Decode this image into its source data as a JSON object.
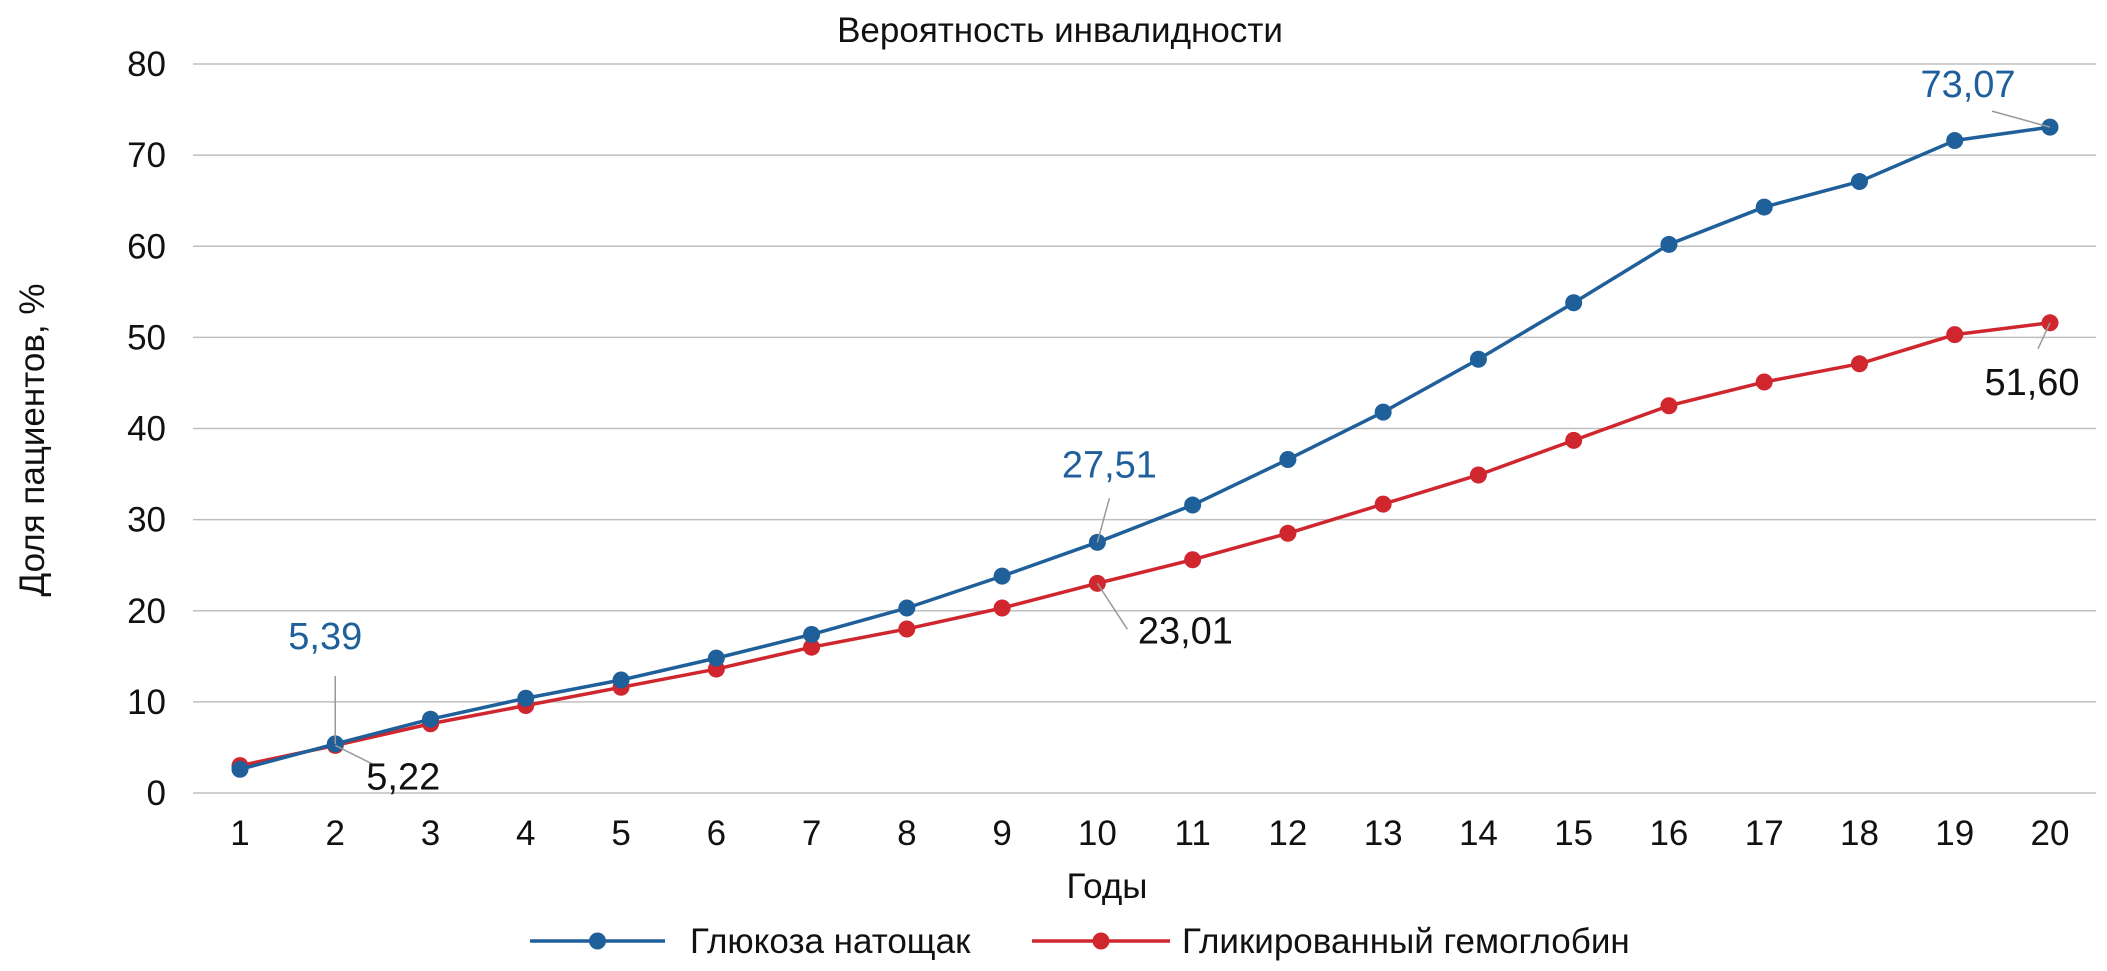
{
  "chart_data": {
    "type": "line",
    "title": "Вероятность инвалидности",
    "xlabel": "Годы",
    "ylabel": "Доля пациентов, %",
    "categories": [
      "1",
      "2",
      "3",
      "4",
      "5",
      "6",
      "7",
      "8",
      "9",
      "10",
      "11",
      "12",
      "13",
      "14",
      "15",
      "16",
      "17",
      "18",
      "19",
      "20"
    ],
    "ylim": [
      0,
      80
    ],
    "yticks": [
      "0",
      "10",
      "20",
      "30",
      "40",
      "50",
      "60",
      "70",
      "80"
    ],
    "grid": true,
    "legend_position": "bottom",
    "series": [
      {
        "name": "Глюкоза натощак",
        "color": "#1f5f9a",
        "values": [
          2.6,
          5.39,
          8.1,
          10.4,
          12.4,
          14.8,
          17.4,
          20.3,
          23.8,
          27.51,
          31.6,
          36.6,
          41.8,
          47.6,
          53.8,
          60.2,
          64.3,
          67.1,
          71.6,
          73.07
        ]
      },
      {
        "name": "Гликированный гемоглобин",
        "color": "#d0262e",
        "values": [
          3.0,
          5.22,
          7.6,
          9.6,
          11.6,
          13.6,
          16.0,
          18.0,
          20.3,
          23.01,
          25.6,
          28.5,
          31.7,
          34.9,
          38.7,
          42.5,
          45.1,
          47.1,
          50.3,
          51.6
        ]
      }
    ],
    "annotations": [
      {
        "series": 0,
        "index": 1,
        "text": "5,39",
        "color": "#1f5f9a"
      },
      {
        "series": 1,
        "index": 1,
        "text": "5,22",
        "color": "#111111"
      },
      {
        "series": 0,
        "index": 9,
        "text": "27,51",
        "color": "#1f5f9a"
      },
      {
        "series": 1,
        "index": 9,
        "text": "23,01",
        "color": "#111111"
      },
      {
        "series": 0,
        "index": 19,
        "text": "73,07",
        "color": "#1f5f9a"
      },
      {
        "series": 1,
        "index": 19,
        "text": "51,60",
        "color": "#111111"
      }
    ]
  }
}
